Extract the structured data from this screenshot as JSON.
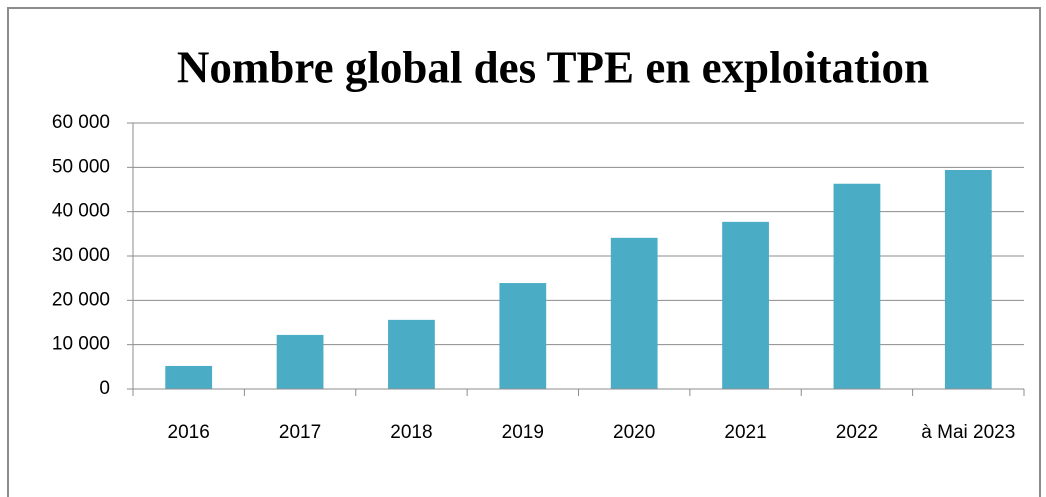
{
  "chart_data": {
    "type": "bar",
    "title": "Nombre global des TPE en exploitation",
    "categories": [
      "2016",
      "2017",
      "2018",
      "2019",
      "2020",
      "2021",
      "2022",
      "à Mai 2023"
    ],
    "values": [
      5200,
      12200,
      15600,
      23900,
      34100,
      37700,
      46300,
      49400
    ],
    "color": "#4bacc6",
    "ylim": [
      0,
      60000
    ],
    "yticks": [
      0,
      {
        "value": 10000,
        "label": "10 000"
      },
      {
        "value": 20000,
        "label": "20 000"
      },
      {
        "value": 30000,
        "label": "30 000"
      },
      {
        "value": 40000,
        "label": "40 000"
      },
      {
        "value": 50000,
        "label": "50 000"
      },
      {
        "value": 60000,
        "label": "60 000"
      }
    ],
    "grid": true
  }
}
